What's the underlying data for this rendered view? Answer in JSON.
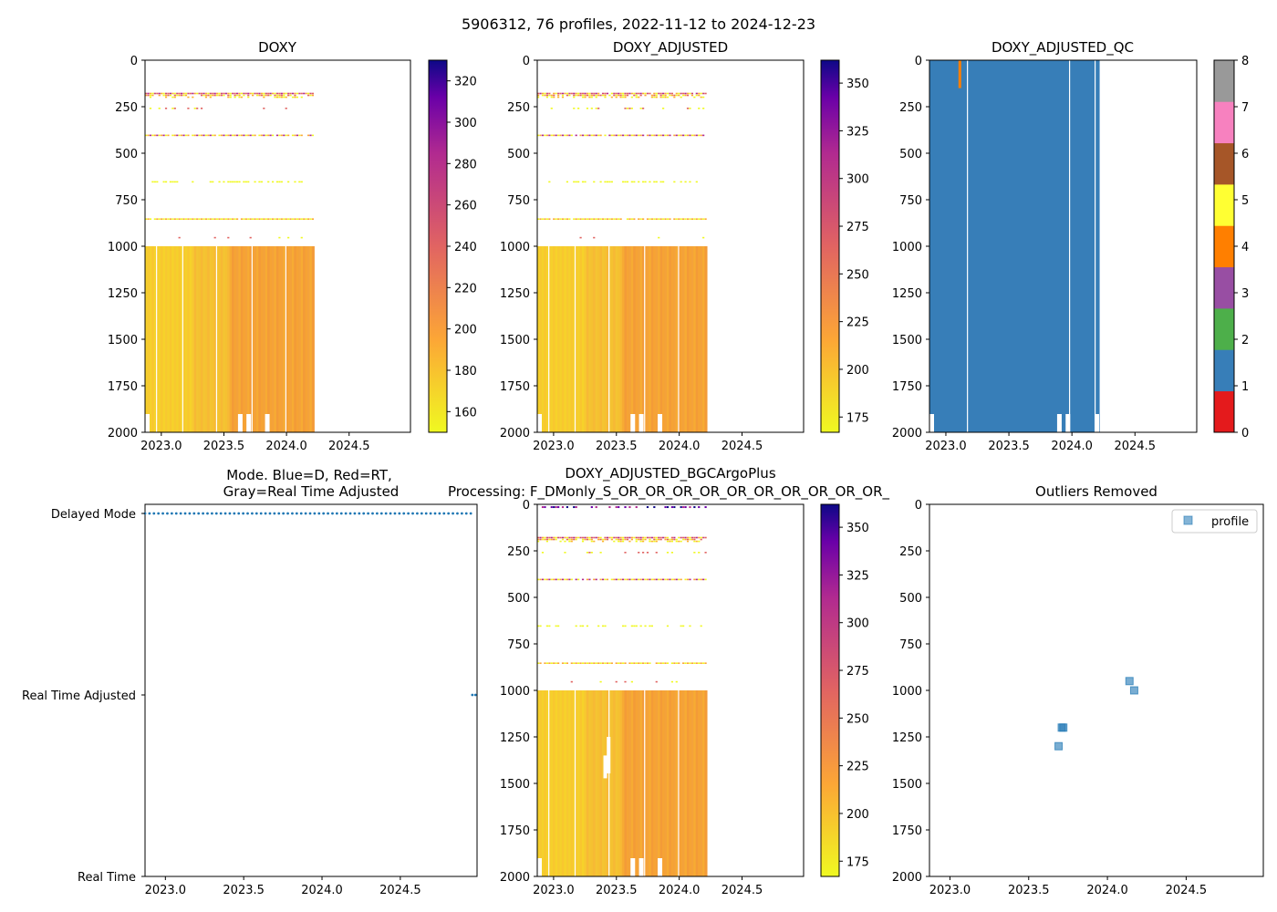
{
  "colors": {
    "low": "#f5e727",
    "mid": "#f6a334",
    "high": "#1b0a80",
    "mode_dots": "#1f77b4",
    "qc_blue": "#377eb8",
    "outlier": "#1f77b4",
    "qc_palette": [
      "#e41a1c",
      "#377eb8",
      "#4daf4a",
      "#984ea3",
      "#ff7f00",
      "#ffff33",
      "#a65628",
      "#f781bf",
      "#999999"
    ]
  },
  "chart_data": [
    {
      "id": "suptitle",
      "type": "title",
      "title": "5906312, 76 profiles, 2022-11-12 to 2024-12-23"
    },
    {
      "id": "doxy",
      "type": "heatmap",
      "title": "DOXY",
      "x": {
        "range": [
          2022.87,
          2024.99
        ],
        "ticks": [
          2023.0,
          2023.5,
          2024.0,
          2024.5
        ],
        "tick_labels": [
          "2023.0",
          "2023.5",
          "2024.0",
          "2024.5"
        ]
      },
      "y": {
        "range": [
          2000,
          0
        ],
        "ticks": [
          0,
          250,
          500,
          750,
          1000,
          1250,
          1500,
          1750,
          2000
        ],
        "tick_labels": [
          "0",
          "250",
          "500",
          "750",
          "1000",
          "1250",
          "1500",
          "1750",
          "2000"
        ]
      },
      "data_x_extent": [
        2022.87,
        2024.22
      ],
      "colorbar": {
        "range": [
          150,
          330
        ],
        "ticks": [
          160,
          180,
          200,
          220,
          240,
          260,
          280,
          300,
          320
        ],
        "tick_labels": [
          "160",
          "180",
          "200",
          "220",
          "240",
          "260",
          "280",
          "300",
          "320"
        ]
      }
    },
    {
      "id": "doxy_adjusted",
      "type": "heatmap",
      "title": "DOXY_ADJUSTED",
      "x": {
        "range": [
          2022.87,
          2024.99
        ],
        "ticks": [
          2023.0,
          2023.5,
          2024.0,
          2024.5
        ],
        "tick_labels": [
          "2023.0",
          "2023.5",
          "2024.0",
          "2024.5"
        ]
      },
      "y": {
        "range": [
          2000,
          0
        ],
        "ticks": [
          0,
          250,
          500,
          750,
          1000,
          1250,
          1500,
          1750,
          2000
        ],
        "tick_labels": [
          "0",
          "250",
          "500",
          "750",
          "1000",
          "1250",
          "1500",
          "1750",
          "2000"
        ]
      },
      "data_x_extent": [
        2022.87,
        2024.22
      ],
      "colorbar": {
        "range": [
          167,
          362
        ],
        "ticks": [
          175,
          200,
          225,
          250,
          275,
          300,
          325,
          350
        ],
        "tick_labels": [
          "175",
          "200",
          "225",
          "250",
          "275",
          "300",
          "325",
          "350"
        ]
      }
    },
    {
      "id": "doxy_adjusted_qc",
      "type": "heatmap",
      "title": "DOXY_ADJUSTED_QC",
      "x": {
        "range": [
          2022.87,
          2024.99
        ],
        "ticks": [
          2023.0,
          2023.5,
          2024.0,
          2024.5
        ],
        "tick_labels": [
          "2023.0",
          "2023.5",
          "2024.0",
          "2024.5"
        ]
      },
      "y": {
        "range": [
          2000,
          0
        ],
        "ticks": [
          0,
          250,
          500,
          750,
          1000,
          1250,
          1500,
          1750,
          2000
        ],
        "tick_labels": [
          "0",
          "250",
          "500",
          "750",
          "1000",
          "1250",
          "1500",
          "1750",
          "2000"
        ]
      },
      "data_x_extent": [
        2022.87,
        2024.22
      ],
      "dominant_flag": 1,
      "flag4_streak": {
        "x": 2023.1,
        "y_range": [
          0,
          150
        ]
      },
      "colorbar": {
        "range": [
          0,
          8
        ],
        "ticks": [
          0,
          1,
          2,
          3,
          4,
          5,
          6,
          7,
          8
        ],
        "tick_labels": [
          "0",
          "1",
          "2",
          "3",
          "4",
          "5",
          "6",
          "7",
          "8"
        ]
      }
    },
    {
      "id": "mode",
      "type": "scatter",
      "title_lines": [
        "Mode. Blue=D, Red=RT,",
        "Gray=Real Time Adjusted"
      ],
      "x": {
        "range": [
          2022.87,
          2024.99
        ],
        "ticks": [
          2023.0,
          2023.5,
          2024.0,
          2024.5
        ],
        "tick_labels": [
          "2023.0",
          "2023.5",
          "2024.0",
          "2024.5"
        ]
      },
      "y_categories": [
        "Delayed Mode",
        "Real Time Adjusted",
        "Real Time"
      ],
      "delayed_x_range": [
        2022.87,
        2024.95
      ],
      "delayed_count": 74,
      "rta_points": [
        2024.96,
        2024.98
      ]
    },
    {
      "id": "bgc",
      "type": "heatmap",
      "title_lines": [
        "DOXY_ADJUSTED_BGCArgoPlus",
        "Processing: F_DMonly_S_OR_OR_OR_OR_OR_OR_OR_OR_OR_OR_"
      ],
      "x": {
        "range": [
          2022.87,
          2024.99
        ],
        "ticks": [
          2023.0,
          2023.5,
          2024.0,
          2024.5
        ],
        "tick_labels": [
          "2023.0",
          "2023.5",
          "2024.0",
          "2024.5"
        ]
      },
      "y": {
        "range": [
          2000,
          0
        ],
        "ticks": [
          0,
          250,
          500,
          750,
          1000,
          1250,
          1500,
          1750,
          2000
        ],
        "tick_labels": [
          "0",
          "250",
          "500",
          "750",
          "1000",
          "1250",
          "1500",
          "1750",
          "2000"
        ]
      },
      "data_x_extent": [
        2022.87,
        2024.22
      ],
      "colorbar": {
        "range": [
          167,
          362
        ],
        "ticks": [
          175,
          200,
          225,
          250,
          275,
          300,
          325,
          350
        ],
        "tick_labels": [
          "175",
          "200",
          "225",
          "250",
          "275",
          "300",
          "325",
          "350"
        ]
      }
    },
    {
      "id": "outliers",
      "type": "scatter",
      "title": "Outliers Removed",
      "x": {
        "range": [
          2022.87,
          2024.99
        ],
        "ticks": [
          2023.0,
          2023.5,
          2024.0,
          2024.5
        ],
        "tick_labels": [
          "2023.0",
          "2023.5",
          "2024.0",
          "2024.5"
        ]
      },
      "y": {
        "range": [
          2000,
          0
        ],
        "ticks": [
          0,
          250,
          500,
          750,
          1000,
          1250,
          1500,
          1750,
          2000
        ],
        "tick_labels": [
          "0",
          "250",
          "500",
          "750",
          "1000",
          "1250",
          "1500",
          "1750",
          "2000"
        ]
      },
      "points": [
        {
          "x": 2023.71,
          "y": 1200
        },
        {
          "x": 2023.72,
          "y": 1200
        },
        {
          "x": 2023.69,
          "y": 1300
        },
        {
          "x": 2024.14,
          "y": 950
        },
        {
          "x": 2024.17,
          "y": 1000
        }
      ],
      "legend": {
        "label": "profile",
        "loc": "upper right"
      }
    }
  ]
}
